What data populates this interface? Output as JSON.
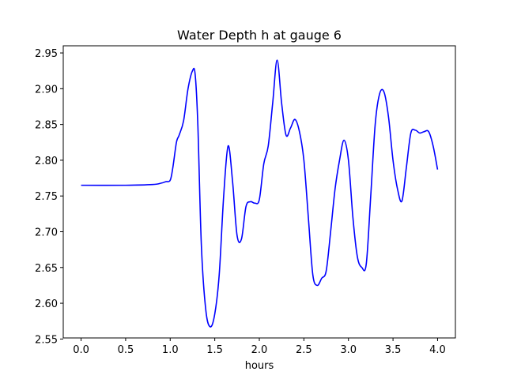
{
  "chart_data": {
    "type": "line",
    "title": "Water Depth h at gauge 6",
    "xlabel": "hours",
    "ylabel": "",
    "xlim": [
      -0.2,
      4.2
    ],
    "ylim": [
      2.5515,
      2.96
    ],
    "xticks": [
      0.0,
      0.5,
      1.0,
      1.5,
      2.0,
      2.5,
      3.0,
      3.5,
      4.0
    ],
    "xtick_labels": [
      "0.0",
      "0.5",
      "1.0",
      "1.5",
      "2.0",
      "2.5",
      "3.0",
      "3.5",
      "4.0"
    ],
    "yticks": [
      2.55,
      2.6,
      2.65,
      2.7,
      2.75,
      2.8,
      2.85,
      2.9,
      2.95
    ],
    "ytick_labels": [
      "2.55",
      "2.60",
      "2.65",
      "2.70",
      "2.75",
      "2.80",
      "2.85",
      "2.90",
      "2.95"
    ],
    "grid": false,
    "series": [
      {
        "color": "#0000ff",
        "x": [
          0.0,
          0.5,
          0.8,
          0.9,
          0.95,
          1.0,
          1.03,
          1.07,
          1.1,
          1.15,
          1.2,
          1.25,
          1.28,
          1.31,
          1.35,
          1.4,
          1.45,
          1.5,
          1.55,
          1.6,
          1.65,
          1.7,
          1.75,
          1.8,
          1.85,
          1.9,
          1.95,
          2.0,
          2.05,
          2.1,
          2.15,
          2.2,
          2.25,
          2.3,
          2.35,
          2.4,
          2.45,
          2.5,
          2.55,
          2.6,
          2.65,
          2.7,
          2.75,
          2.8,
          2.85,
          2.9,
          2.95,
          3.0,
          3.05,
          3.1,
          3.15,
          3.2,
          3.25,
          3.3,
          3.35,
          3.4,
          3.45,
          3.5,
          3.55,
          3.6,
          3.65,
          3.7,
          3.75,
          3.8,
          3.85,
          3.9,
          3.95,
          4.0
        ],
        "y": [
          2.765,
          2.765,
          2.766,
          2.768,
          2.77,
          2.772,
          2.79,
          2.825,
          2.835,
          2.855,
          2.9,
          2.925,
          2.92,
          2.85,
          2.68,
          2.59,
          2.567,
          2.585,
          2.64,
          2.75,
          2.82,
          2.77,
          2.695,
          2.69,
          2.735,
          2.742,
          2.74,
          2.745,
          2.795,
          2.82,
          2.88,
          2.94,
          2.88,
          2.835,
          2.845,
          2.857,
          2.84,
          2.8,
          2.72,
          2.64,
          2.625,
          2.635,
          2.645,
          2.7,
          2.76,
          2.8,
          2.828,
          2.8,
          2.72,
          2.665,
          2.65,
          2.655,
          2.75,
          2.85,
          2.893,
          2.895,
          2.86,
          2.8,
          2.76,
          2.743,
          2.79,
          2.838,
          2.842,
          2.838,
          2.84,
          2.84,
          2.82,
          2.787
        ]
      }
    ]
  }
}
